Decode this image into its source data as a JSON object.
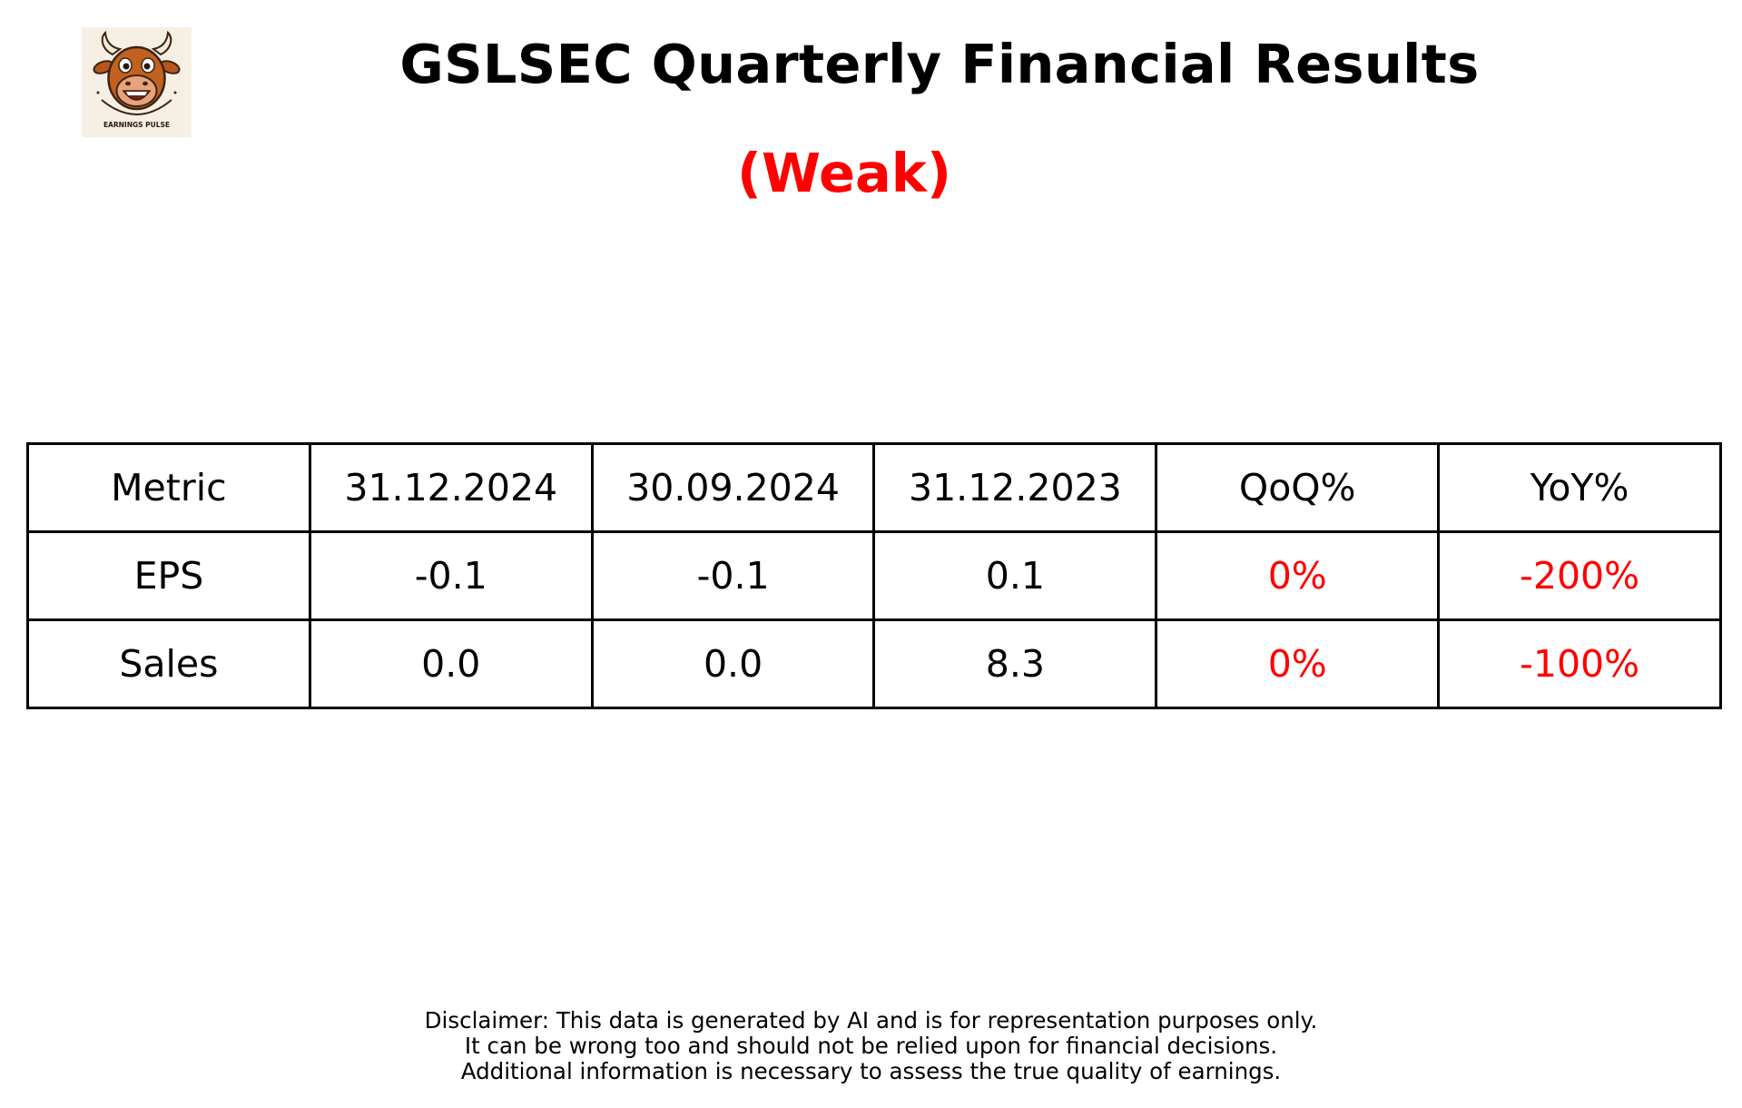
{
  "logo": {
    "text": "EARNINGS PULSE",
    "icon": "bull-mascot-icon"
  },
  "header": {
    "title": "GSLSEC Quarterly Financial Results",
    "rating": "(Weak)",
    "rating_color": "#ff0000"
  },
  "table": {
    "headers": [
      "Metric",
      "31.12.2024",
      "30.09.2024",
      "31.12.2023",
      "QoQ%",
      "YoY%"
    ],
    "rows": [
      {
        "metric": "EPS",
        "q_current": "-0.1",
        "q_previous": "-0.1",
        "q_last_year": "0.1",
        "qoq": "0%",
        "yoy": "-200%"
      },
      {
        "metric": "Sales",
        "q_current": "0.0",
        "q_previous": "0.0",
        "q_last_year": "8.3",
        "qoq": "0%",
        "yoy": "-100%"
      }
    ],
    "change_color": "#ff0000"
  },
  "disclaimer": {
    "line1": "Disclaimer: This data is generated by AI and is for representation purposes only.",
    "line2": "It can be wrong too and should not be relied upon for financial decisions.",
    "line3": "Additional information is necessary to assess the true quality of earnings."
  }
}
